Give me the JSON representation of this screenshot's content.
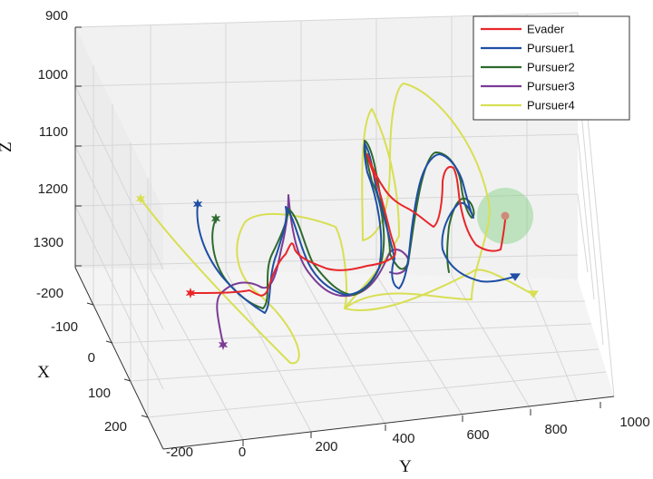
{
  "chart_data": {
    "type": "line",
    "title": "",
    "axes": {
      "x": {
        "label": "X",
        "ticks": [
          "-200",
          "-100",
          "0",
          "100",
          "200"
        ]
      },
      "y": {
        "label": "Y",
        "ticks": [
          "-200",
          "0",
          "200",
          "400",
          "600",
          "800",
          "1000"
        ]
      },
      "z": {
        "label": "Z",
        "ticks": [
          "900",
          "1000",
          "1100",
          "1200",
          "1300"
        ]
      }
    },
    "grid": true,
    "legend": {
      "position": "top-right"
    },
    "series": [
      {
        "name": "Evader",
        "color": "#e8262a"
      },
      {
        "name": "Pursuer1",
        "color": "#1f4fa5"
      },
      {
        "name": "Pursuer2",
        "color": "#2e6a2e"
      },
      {
        "name": "Pursuer3",
        "color": "#7b3b96"
      },
      {
        "name": "Pursuer4",
        "color": "#d8df52"
      }
    ],
    "start_markers": "stars",
    "end_markers": "triangles",
    "capture_sphere_color": "#7fd17f"
  }
}
